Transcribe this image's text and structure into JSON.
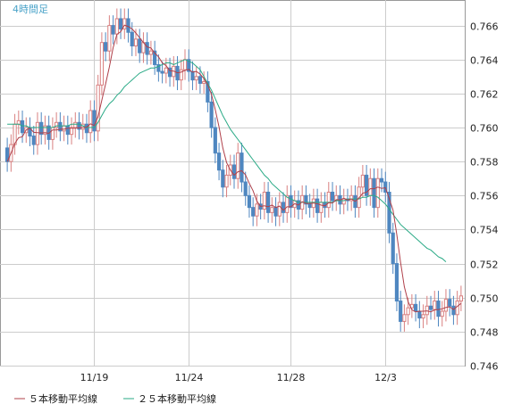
{
  "chart_data": {
    "type": "candlestick",
    "title": "4時間足",
    "ylim": [
      0.746,
      0.7675
    ],
    "grid": true,
    "y_ticks": [
      "0.746",
      "0.748",
      "0.750",
      "0.752",
      "0.754",
      "0.756",
      "0.758",
      "0.760",
      "0.762",
      "0.764",
      "0.766"
    ],
    "x_ticks": [
      {
        "label": "11/19",
        "index": 23
      },
      {
        "label": "11/24",
        "index": 48
      },
      {
        "label": "11/28",
        "index": 75
      },
      {
        "label": "12/3",
        "index": 100
      }
    ],
    "colors": {
      "up": "#d98080",
      "down": "#4f87c0",
      "ma5": "#b0404a",
      "ma25": "#2aaa86",
      "grid": "#cccccc",
      "axis": "#999999"
    },
    "legend": [
      {
        "label": "５本移動平均線",
        "color": "#b0404a"
      },
      {
        "label": "２５本移動平均線",
        "color": "#2aaa86"
      }
    ],
    "series": [
      {
        "name": "５本移動平均線",
        "key": "ma5"
      },
      {
        "name": "２５本移動平均線",
        "key": "ma25"
      }
    ],
    "candles_close": [
      0.758,
      0.759,
      0.7602,
      0.7604,
      0.7597,
      0.76,
      0.7595,
      0.759,
      0.7603,
      0.7596,
      0.7601,
      0.7593,
      0.76,
      0.7603,
      0.7598,
      0.7601,
      0.7596,
      0.76,
      0.7603,
      0.7599,
      0.7602,
      0.7597,
      0.761,
      0.7598,
      0.7625,
      0.765,
      0.7645,
      0.766,
      0.7655,
      0.7664,
      0.7658,
      0.7664,
      0.7656,
      0.7648,
      0.7652,
      0.7644,
      0.765,
      0.7643,
      0.7645,
      0.7637,
      0.7633,
      0.7632,
      0.7635,
      0.763,
      0.7636,
      0.7628,
      0.7634,
      0.764,
      0.7633,
      0.7628,
      0.763,
      0.7626,
      0.7627,
      0.7615,
      0.76,
      0.7585,
      0.7575,
      0.7565,
      0.7572,
      0.7578,
      0.757,
      0.7585,
      0.7568,
      0.756,
      0.7553,
      0.7548,
      0.7555,
      0.7552,
      0.7562,
      0.755,
      0.7553,
      0.7548,
      0.7556,
      0.755,
      0.756,
      0.7553,
      0.7557,
      0.7552,
      0.756,
      0.7555,
      0.7553,
      0.7558,
      0.755,
      0.7556,
      0.7553,
      0.7562,
      0.7557,
      0.756,
      0.7555,
      0.7558,
      0.7557,
      0.756,
      0.7553,
      0.7565,
      0.7572,
      0.756,
      0.757,
      0.7553,
      0.757,
      0.7568,
      0.7562,
      0.7538,
      0.752,
      0.7498,
      0.7486,
      0.749,
      0.7494,
      0.7496,
      0.7492,
      0.7488,
      0.749,
      0.7495,
      0.7493,
      0.7498,
      0.7489,
      0.7492,
      0.7499,
      0.7495,
      0.749,
      0.7498,
      0.7501
    ],
    "ma25": [
      0.7602,
      0.7602,
      0.7602,
      0.7602,
      0.7601,
      0.7601,
      0.76,
      0.76,
      0.76,
      0.76,
      0.76,
      0.76,
      0.76,
      0.7601,
      0.7601,
      0.7601,
      0.7601,
      0.7602,
      0.7602,
      0.7602,
      0.7601,
      0.76,
      0.76,
      0.76,
      0.7603,
      0.7607,
      0.7611,
      0.7614,
      0.7616,
      0.7619,
      0.7621,
      0.7624,
      0.7626,
      0.7628,
      0.763,
      0.7632,
      0.7633,
      0.7634,
      0.7635,
      0.7635,
      0.7636,
      0.7637,
      0.7638,
      0.7638,
      0.7637,
      0.7638,
      0.7639,
      0.764,
      0.7639,
      0.7638,
      0.7636,
      0.7634,
      0.763,
      0.7626,
      0.7622,
      0.7617,
      0.7612,
      0.7607,
      0.7603,
      0.7599,
      0.7596,
      0.7593,
      0.759,
      0.7587,
      0.7584,
      0.7581,
      0.7578,
      0.7575,
      0.7572,
      0.757,
      0.7567,
      0.7565,
      0.7563,
      0.7561,
      0.7559,
      0.7558,
      0.7557,
      0.7556,
      0.7556,
      0.7556,
      0.7556,
      0.7556,
      0.7556,
      0.7556,
      0.7556,
      0.7556,
      0.7556,
      0.7557,
      0.7557,
      0.7557,
      0.7558,
      0.7558,
      0.7558,
      0.7558,
      0.7559,
      0.7559,
      0.756,
      0.756,
      0.7559,
      0.7557,
      0.7555,
      0.7552,
      0.7549,
      0.7546,
      0.7543,
      0.7541,
      0.7539,
      0.7537,
      0.7535,
      0.7533,
      0.7531,
      0.7529,
      0.7528,
      0.7526,
      0.7524,
      0.7523,
      0.7521
    ]
  }
}
